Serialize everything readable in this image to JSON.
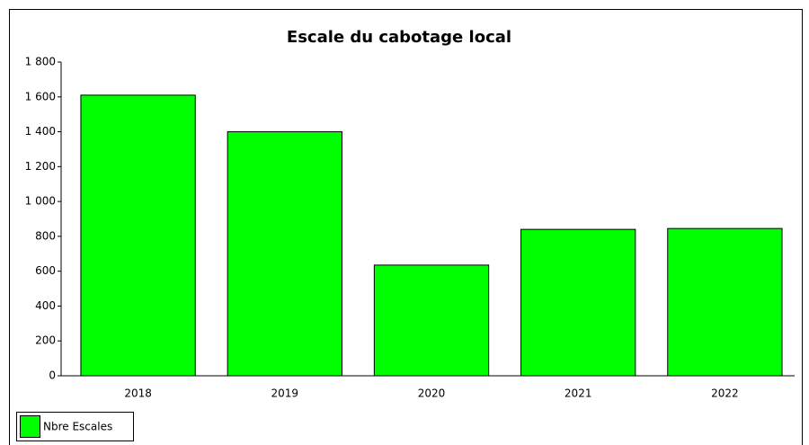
{
  "chart_data": {
    "type": "bar",
    "title": "Escale du cabotage local",
    "categories": [
      "2018",
      "2019",
      "2020",
      "2021",
      "2022"
    ],
    "series": [
      {
        "name": "Nbre Escales",
        "color": "#00ff00",
        "values": [
          1610,
          1400,
          635,
          840,
          845
        ]
      }
    ],
    "ylim": [
      0,
      1800
    ],
    "yticks": [
      0,
      200,
      400,
      600,
      800,
      {
        "value": 1000,
        "label": "1 000"
      },
      {
        "value": 1200,
        "label": "1 200"
      },
      {
        "value": 1400,
        "label": "1 400"
      },
      {
        "value": 1600,
        "label": "1 600"
      },
      {
        "value": 1800,
        "label": "1 800"
      }
    ],
    "legend": "bottom-left"
  }
}
